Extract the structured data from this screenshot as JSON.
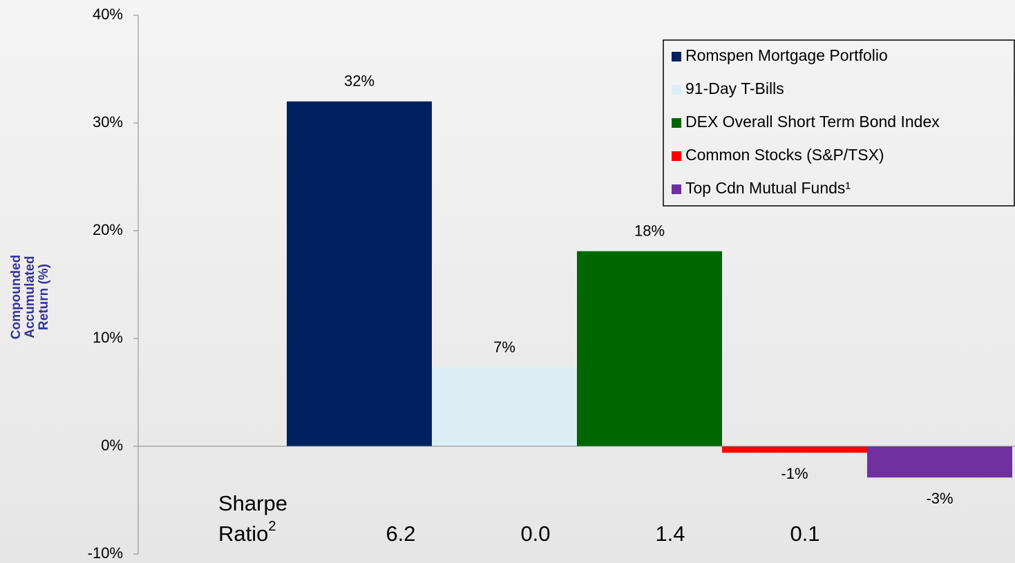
{
  "chart_data": {
    "type": "bar",
    "ylabel": "Compounded Accumulated Return (%)",
    "ylim": [
      -10,
      40
    ],
    "yticks": [
      {
        "value": -10,
        "label": "-10%"
      },
      {
        "value": 0,
        "label": "0%"
      },
      {
        "value": 10,
        "label": "10%"
      },
      {
        "value": 20,
        "label": "20%"
      },
      {
        "value": 30,
        "label": "30%"
      },
      {
        "value": 40,
        "label": "40%"
      }
    ],
    "series": [
      {
        "name": "Romspen Mortgage Portfolio",
        "color": "#002060",
        "values": [
          32
        ],
        "value_labels": [
          "32%"
        ]
      },
      {
        "name": "91-Day T-Bills",
        "color": "#DAEEF3",
        "values": [
          7.3
        ],
        "value_labels": [
          "7%"
        ]
      },
      {
        "name": "DEX Overall Short Term Bond Index",
        "color": "#006600",
        "values": [
          18.1
        ],
        "value_labels": [
          "18%"
        ]
      },
      {
        "name": "Common Stocks (S&P/TSX)",
        "color": "#FF0000",
        "values": [
          -0.6
        ],
        "value_labels": [
          "-1%"
        ]
      },
      {
        "name": "Top Cdn Mutual Funds¹",
        "color": "#7030A0",
        "values": [
          -2.9
        ],
        "value_labels": [
          "-3%"
        ]
      }
    ],
    "sharpe_label": [
      "Sharpe",
      "Ratio"
    ],
    "sharpe_superscript": "2",
    "sharpe_ratios": [
      "6.2",
      "0.0",
      "1.4",
      "0.1"
    ],
    "legend": "top-right"
  }
}
